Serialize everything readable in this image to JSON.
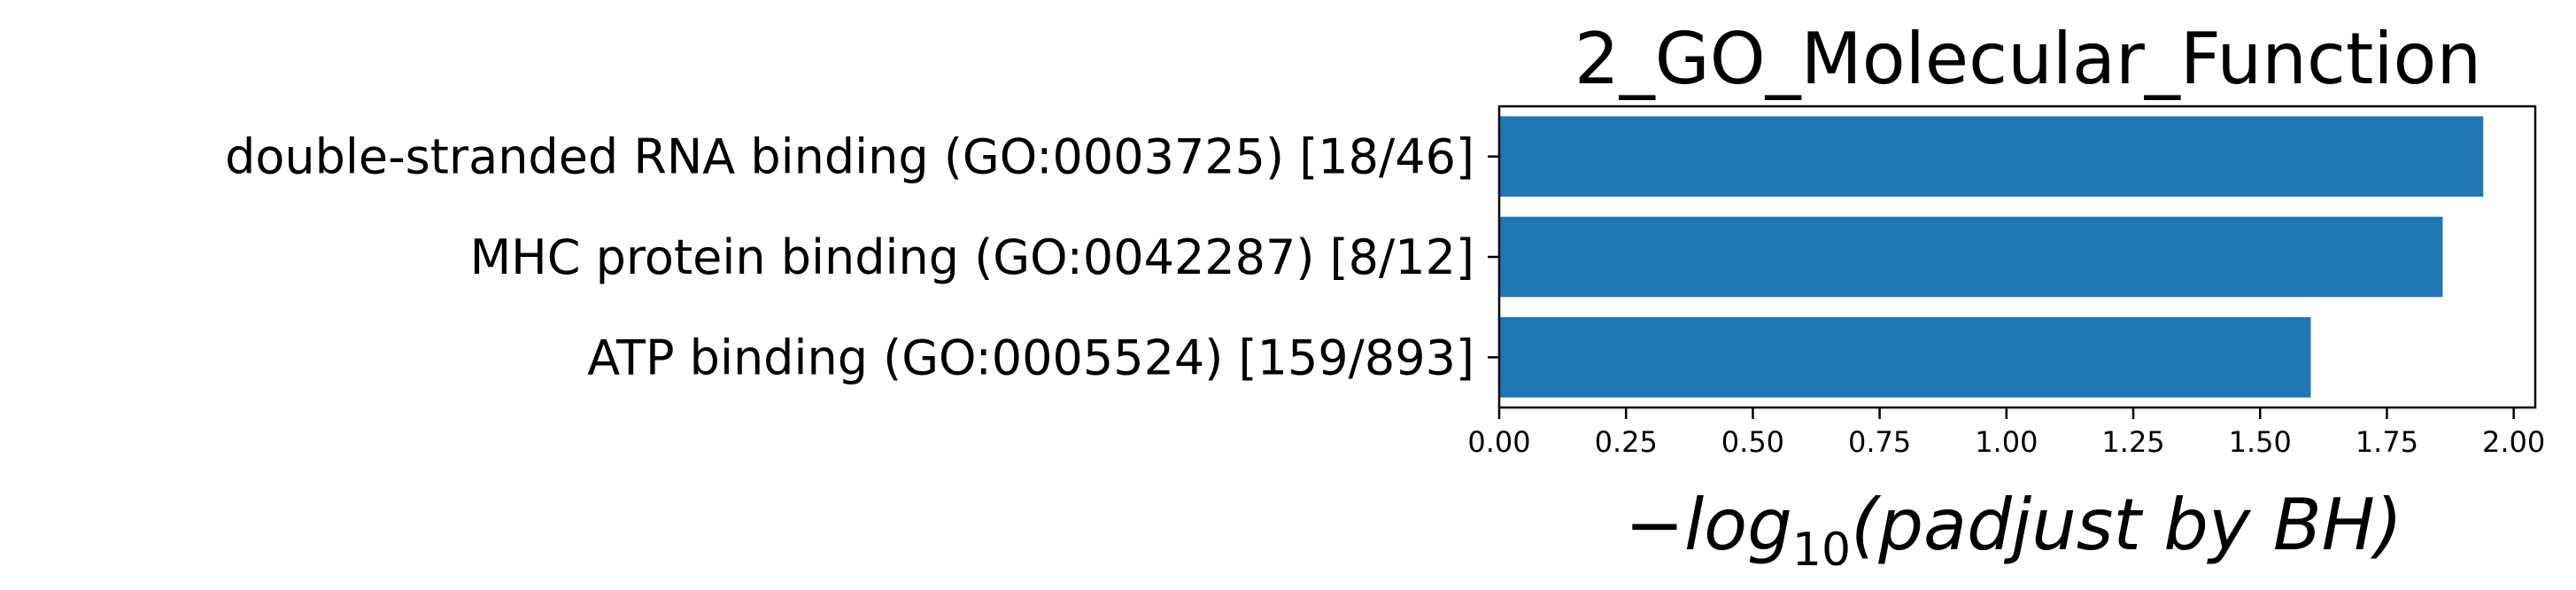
{
  "chart_data": {
    "type": "bar",
    "orientation": "horizontal",
    "title": "2_GO_Molecular_Function",
    "xlabel": {
      "minus": "−",
      "log": "log",
      "base": "10",
      "rest": "(padjust by BH)"
    },
    "ylabel": "",
    "categories": [
      "double-stranded RNA binding (GO:0003725) [18/46]",
      "MHC protein binding (GO:0042287) [8/12]",
      "ATP binding (GO:0005524) [159/893]"
    ],
    "values": [
      1.94,
      1.86,
      1.6
    ],
    "xlim": [
      0,
      2.0425
    ],
    "xticks": [
      "0.00",
      "0.25",
      "0.50",
      "0.75",
      "1.00",
      "1.25",
      "1.50",
      "1.75",
      "2.00"
    ],
    "bar_color": "#1f77b4",
    "grid": false,
    "legend": "none"
  }
}
